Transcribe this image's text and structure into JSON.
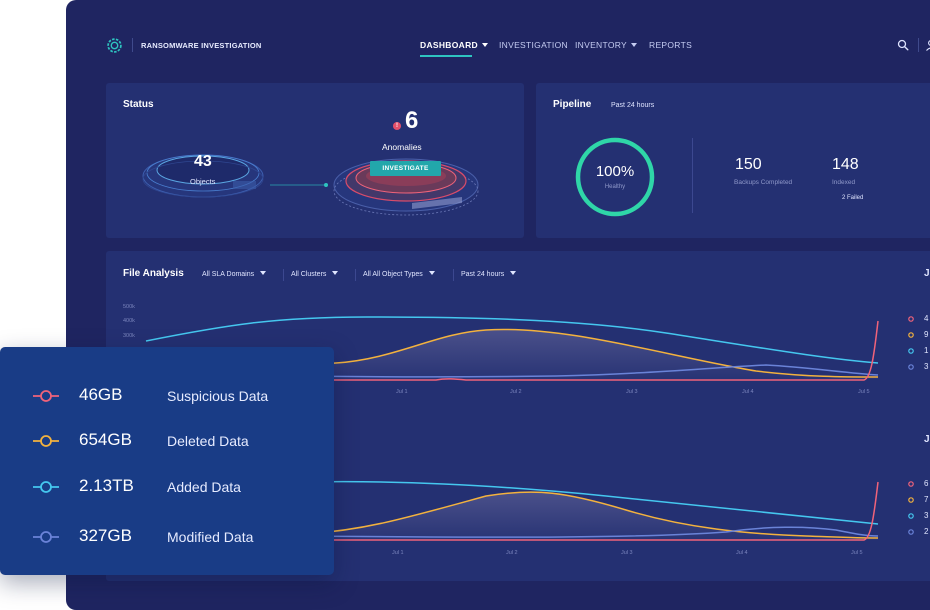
{
  "header": {
    "app_title": "RANSOMWARE INVESTIGATION",
    "nav": [
      {
        "label": "DASHBOARD",
        "active": true,
        "dropdown": true
      },
      {
        "label": "INVESTIGATION",
        "active": false,
        "dropdown": false
      },
      {
        "label": "INVENTORY",
        "active": false,
        "dropdown": true
      },
      {
        "label": "REPORTS",
        "active": false,
        "dropdown": false
      }
    ],
    "icons": [
      "search-icon",
      "user-icon"
    ]
  },
  "status": {
    "title": "Status",
    "objects_count": "43",
    "objects_label": "Objects",
    "anomaly_count": "6",
    "anomaly_badge": "!",
    "anomalies_label": "Anomalies",
    "investigate_label": "INVESTIGATE"
  },
  "pipeline": {
    "title": "Pipeline",
    "range": "Past 24 hours",
    "healthy_percent": "100%",
    "healthy_fraction": 1.0,
    "healthy_label": "Healthy",
    "backups_count": "150",
    "backups_label": "Backups Completed",
    "indexed_count": "148",
    "indexed_label": "Indexed",
    "failed_label": "2 Failed"
  },
  "file_analysis": {
    "title": "File Analysis",
    "filters": [
      "All SLA Domains",
      "All Clusters",
      "All All Object Types",
      "Past 24 hours"
    ],
    "y_ticks": [
      "500k",
      "400k",
      "300k"
    ],
    "x_ticks_top": [
      "Jul 1",
      "Jul 2",
      "Jul 3",
      "Jul 4",
      "Jul 5"
    ],
    "x_ticks_bottom": [
      "Jul 1",
      "Jul 2",
      "Jul 3",
      "Jul 4",
      "Jul 5"
    ],
    "side_header_top": "Ju",
    "side_header_bottom": "Ju",
    "side_legend_top": [
      "4",
      "9",
      "1",
      "3"
    ],
    "side_legend_bottom": [
      "6",
      "7",
      "3",
      "2"
    ]
  },
  "colors": {
    "suspicious": "#f0637a",
    "deleted": "#f3b23e",
    "added": "#45c7ef",
    "modified": "#6a83d8",
    "accent": "#2ec4c0"
  },
  "legend": [
    {
      "value": "46GB",
      "label": "Suspicious Data",
      "color": "#f0637a"
    },
    {
      "value": "654GB",
      "label": "Deleted Data",
      "color": "#f3b23e"
    },
    {
      "value": "2.13TB",
      "label": "Added Data",
      "color": "#45c7ef"
    },
    {
      "value": "327GB",
      "label": "Modified Data",
      "color": "#6a83d8"
    }
  ]
}
